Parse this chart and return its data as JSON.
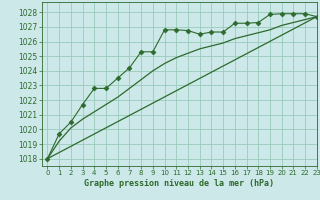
{
  "title": "Graphe pression niveau de la mer (hPa)",
  "background_color": "#cce8e8",
  "grid_color": "#99ccbb",
  "line_color": "#2d6a2d",
  "xlim": [
    -0.5,
    23
  ],
  "ylim": [
    1017.5,
    1028.7
  ],
  "yticks": [
    1018,
    1019,
    1020,
    1021,
    1022,
    1023,
    1024,
    1025,
    1026,
    1027,
    1028
  ],
  "xticks": [
    0,
    1,
    2,
    3,
    4,
    5,
    6,
    7,
    8,
    9,
    10,
    11,
    12,
    13,
    14,
    15,
    16,
    17,
    18,
    19,
    20,
    21,
    22,
    23
  ],
  "series1_x": [
    0,
    1,
    2,
    3,
    4,
    5,
    6,
    7,
    8,
    9,
    10,
    11,
    12,
    13,
    14,
    15,
    16,
    17,
    18,
    19,
    20,
    21,
    22,
    23
  ],
  "series1_y": [
    1018.0,
    1019.7,
    1020.5,
    1021.7,
    1022.8,
    1022.8,
    1023.5,
    1024.2,
    1025.3,
    1025.3,
    1026.8,
    1026.8,
    1026.75,
    1026.5,
    1026.65,
    1026.65,
    1027.25,
    1027.25,
    1027.3,
    1027.85,
    1027.9,
    1027.9,
    1027.9,
    1027.7
  ],
  "series2_x": [
    0,
    23
  ],
  "series2_y": [
    1018.0,
    1027.7
  ],
  "series3_x": [
    0,
    1,
    2,
    3,
    4,
    5,
    6,
    7,
    8,
    9,
    10,
    11,
    12,
    13,
    14,
    15,
    16,
    17,
    18,
    19,
    20,
    21,
    22,
    23
  ],
  "series3_y": [
    1018.0,
    1019.2,
    1020.1,
    1020.7,
    1021.2,
    1021.7,
    1022.2,
    1022.8,
    1023.4,
    1024.0,
    1024.5,
    1024.9,
    1025.2,
    1025.5,
    1025.7,
    1025.9,
    1026.2,
    1026.4,
    1026.6,
    1026.8,
    1027.1,
    1027.3,
    1027.5,
    1027.7
  ]
}
